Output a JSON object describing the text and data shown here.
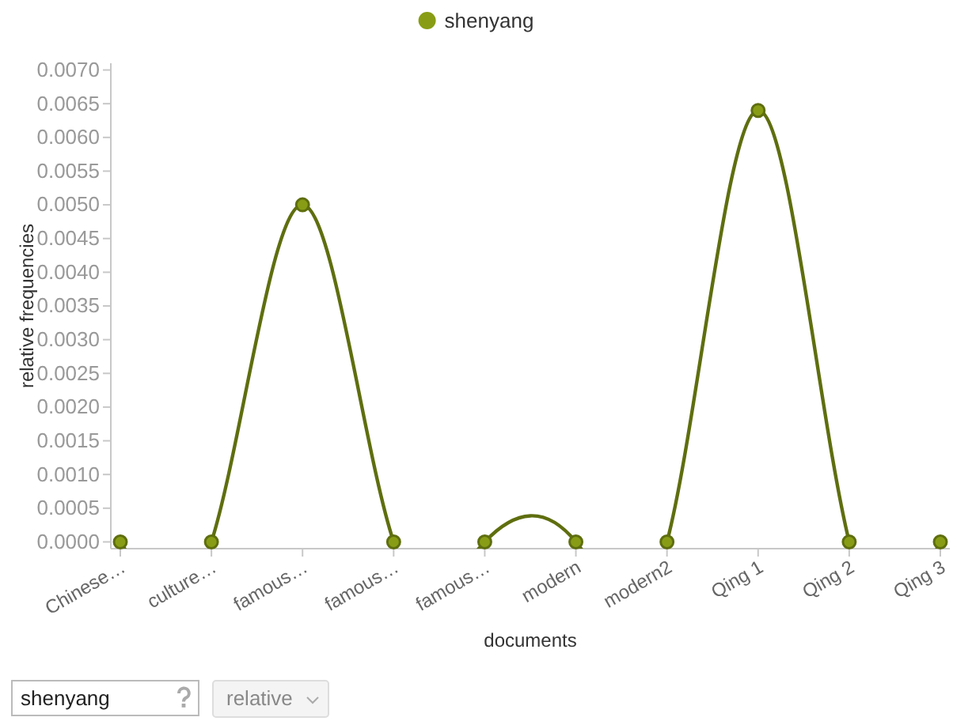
{
  "chart_data": {
    "type": "line",
    "xlabel": "documents",
    "ylabel": "relative frequencies",
    "categories": [
      "Chinese…",
      "culture…",
      "famous…",
      "famous…",
      "famous…",
      "modern",
      "modern2",
      "Qing 1",
      "Qing 2",
      "Qing 3"
    ],
    "series": [
      {
        "name": "shenyang",
        "color": "#5f6e0f",
        "values": [
          0,
          0,
          0.005,
          0,
          0,
          0,
          0,
          0.0064,
          0,
          0
        ]
      }
    ],
    "ylim": [
      -0.0001,
      0.0071
    ],
    "yticks": [
      {
        "value": 0,
        "label": "0.0000"
      },
      {
        "value": 0.0005,
        "label": "0.0005"
      },
      {
        "value": 0.001,
        "label": "0.0010"
      },
      {
        "value": 0.0015,
        "label": "0.0015"
      },
      {
        "value": 0.002,
        "label": "0.0020"
      },
      {
        "value": 0.0025,
        "label": "0.0025"
      },
      {
        "value": 0.003,
        "label": "0.0030"
      },
      {
        "value": 0.0035,
        "label": "0.0035"
      },
      {
        "value": 0.004,
        "label": "0.0040"
      },
      {
        "value": 0.0045,
        "label": "0.0045"
      },
      {
        "value": 0.005,
        "label": "0.0050"
      },
      {
        "value": 0.0055,
        "label": "0.0055"
      },
      {
        "value": 0.006,
        "label": "0.0060"
      },
      {
        "value": 0.0065,
        "label": "0.0065"
      },
      {
        "value": 0.007,
        "label": "0.0070"
      }
    ],
    "legend": "top",
    "marker": "circle",
    "annotations": [
      "shenyang",
      "relative"
    ]
  }
}
